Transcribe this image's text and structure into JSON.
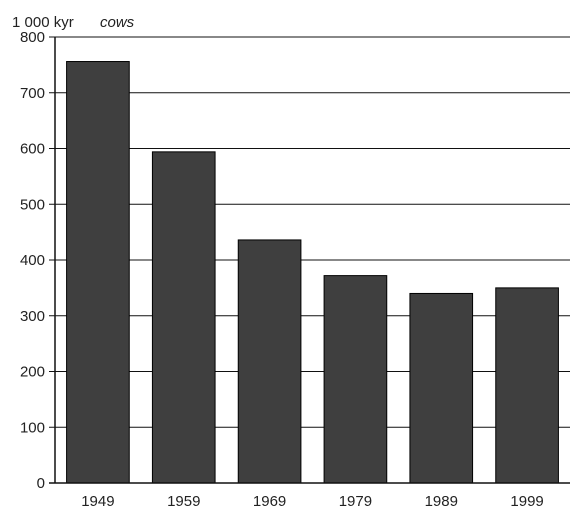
{
  "chart_data": {
    "type": "bar",
    "unit_label": "1 000 kyr",
    "series_label": "cows",
    "categories": [
      "1949",
      "1959",
      "1969",
      "1979",
      "1989",
      "1999"
    ],
    "values": [
      756,
      594,
      436,
      372,
      340,
      350
    ],
    "ylim": [
      0,
      800
    ],
    "yticks": [
      0,
      100,
      200,
      300,
      400,
      500,
      600,
      700,
      800
    ],
    "grid": true,
    "bar_color": "#3f3f3f",
    "gridline_color": "#111111"
  }
}
